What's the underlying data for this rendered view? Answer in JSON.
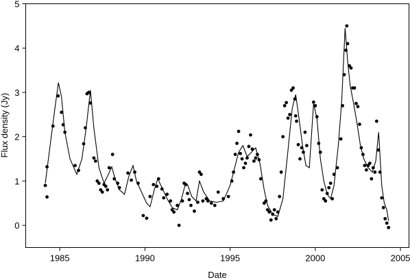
{
  "chart_data": {
    "type": "scatter",
    "xlabel": "Date",
    "ylabel": "Flux density (Jy)",
    "xlim": [
      1983,
      2005.5
    ],
    "ylim": [
      -0.5,
      5
    ],
    "x_ticks": [
      1985,
      1990,
      1995,
      2000,
      2005
    ],
    "y_ticks": [
      0,
      1,
      2,
      3,
      4,
      5
    ],
    "grid": false,
    "legend": "none",
    "colors": {
      "points": "#000000",
      "line": "#000000"
    },
    "series": [
      {
        "kind": "points",
        "x": [
          1984.15,
          1984.25,
          1984.25,
          1984.6,
          1984.9,
          1985.1,
          1985.2,
          1985.3,
          1985.9,
          1986.1,
          1986.4,
          1986.5,
          1986.6,
          1986.7,
          1986.8,
          1987.0,
          1987.1,
          1987.2,
          1987.3,
          1987.4,
          1987.5,
          1987.6,
          1987.7,
          1987.8,
          1987.9,
          1988.1,
          1988.2,
          1988.4,
          1988.5,
          1989.0,
          1989.2,
          1989.4,
          1989.6,
          1989.9,
          1990.1,
          1990.3,
          1990.5,
          1990.7,
          1990.8,
          1991.0,
          1991.1,
          1991.3,
          1991.5,
          1991.6,
          1991.7,
          1991.9,
          1992.0,
          1992.2,
          1992.3,
          1992.4,
          1992.5,
          1992.6,
          1992.7,
          1992.9,
          1993.1,
          1993.2,
          1993.3,
          1993.4,
          1993.6,
          1993.7,
          1993.9,
          1994.1,
          1994.3,
          1994.6,
          1994.9,
          1995.1,
          1995.2,
          1995.3,
          1995.4,
          1995.5,
          1995.6,
          1995.7,
          1995.8,
          1995.9,
          1996.0,
          1996.1,
          1996.2,
          1996.3,
          1996.4,
          1996.5,
          1996.6,
          1996.7,
          1996.8,
          1997.0,
          1997.1,
          1997.2,
          1997.3,
          1997.4,
          1997.5,
          1997.6,
          1997.7,
          1997.8,
          1997.9,
          1998.0,
          1998.1,
          1998.2,
          1998.3,
          1998.4,
          1998.5,
          1998.6,
          1998.7,
          1998.8,
          1998.85,
          1998.9,
          1999.0,
          1999.1,
          1999.2,
          1999.3,
          1999.4,
          1999.5,
          1999.9,
          2000.0,
          2000.1,
          2000.2,
          2000.3,
          2000.4,
          2000.5,
          2000.6,
          2000.7,
          2000.8,
          2000.9,
          2001.0,
          2001.1,
          2001.3,
          2001.5,
          2001.6,
          2001.7,
          2001.8,
          2001.85,
          2001.9,
          2002.0,
          2002.1,
          2002.2,
          2002.3,
          2002.4,
          2002.5,
          2002.6,
          2002.7,
          2002.8,
          2002.9,
          2003.0,
          2003.1,
          2003.2,
          2003.3,
          2003.4,
          2003.5,
          2003.6,
          2003.7,
          2003.8,
          2003.9,
          2004.0,
          2004.1,
          2004.2,
          2004.3
        ],
        "y": [
          0.9,
          1.32,
          0.64,
          2.24,
          2.92,
          2.55,
          2.27,
          2.1,
          1.35,
          1.24,
          1.84,
          2.2,
          2.97,
          3.0,
          2.76,
          1.52,
          1.45,
          1.0,
          0.95,
          0.8,
          0.75,
          0.92,
          0.88,
          0.8,
          1.3,
          1.6,
          1.05,
          0.95,
          0.85,
          1.18,
          1.02,
          1.2,
          0.95,
          0.22,
          0.16,
          0.65,
          0.92,
          0.88,
          1.05,
          0.82,
          0.62,
          0.7,
          0.55,
          0.35,
          0.3,
          0.45,
          0.0,
          0.55,
          0.95,
          0.92,
          0.72,
          0.58,
          0.45,
          0.32,
          0.52,
          1.2,
          1.15,
          0.55,
          0.6,
          0.55,
          0.5,
          0.45,
          0.75,
          0.6,
          0.65,
          1.0,
          1.2,
          1.6,
          1.85,
          2.12,
          1.62,
          1.5,
          1.3,
          1.4,
          1.52,
          1.78,
          2.04,
          1.72,
          1.45,
          1.52,
          1.6,
          1.48,
          1.05,
          0.5,
          0.55,
          0.35,
          0.3,
          0.12,
          0.25,
          0.35,
          0.15,
          0.3,
          0.65,
          1.2,
          2.0,
          2.7,
          2.77,
          2.42,
          2.5,
          3.05,
          3.1,
          2.85,
          2.47,
          2.35,
          1.82,
          1.5,
          1.75,
          1.65,
          2.1,
          1.8,
          2.78,
          2.7,
          2.45,
          1.85,
          1.65,
          0.8,
          0.6,
          0.55,
          0.72,
          0.85,
          0.95,
          0.6,
          1.15,
          1.3,
          1.95,
          2.7,
          3.4,
          3.95,
          4.5,
          4.1,
          3.6,
          3.55,
          3.1,
          3.1,
          2.75,
          2.68,
          2.28,
          1.75,
          1.6,
          1.35,
          1.25,
          1.35,
          1.4,
          1.05,
          1.3,
          1.2,
          2.35,
          1.7,
          1.2,
          0.62,
          0.4,
          0.15,
          0.05,
          -0.05
        ]
      },
      {
        "kind": "line",
        "x": [
          1984.15,
          1984.4,
          1984.7,
          1984.92,
          1985.1,
          1985.3,
          1985.6,
          1986.0,
          1986.3,
          1986.55,
          1986.8,
          1987.0,
          1987.3,
          1987.6,
          1987.85,
          1988.05,
          1988.25,
          1988.5,
          1988.8,
          1989.05,
          1989.3,
          1989.5,
          1989.8,
          1990.1,
          1990.3,
          1990.55,
          1990.75,
          1991.0,
          1991.3,
          1991.6,
          1991.9,
          1992.15,
          1992.35,
          1992.5,
          1992.75,
          1993.0,
          1993.2,
          1993.45,
          1993.8,
          1994.2,
          1994.6,
          1995.0,
          1995.3,
          1995.5,
          1995.75,
          1996.0,
          1996.25,
          1996.5,
          1996.75,
          1997.0,
          1997.2,
          1997.5,
          1997.8,
          1998.1,
          1998.4,
          1998.65,
          1998.85,
          1999.05,
          1999.25,
          1999.45,
          1999.65,
          1999.9,
          2000.1,
          2000.3,
          2000.5,
          2000.7,
          2000.9,
          2001.1,
          2001.35,
          2001.55,
          2001.75,
          2001.9,
          2002.05,
          2002.25,
          2002.45,
          2002.65,
          2002.85,
          2003.1,
          2003.35,
          2003.55,
          2003.72,
          2003.9,
          2004.05,
          2004.2,
          2004.3
        ],
        "y": [
          0.95,
          1.7,
          2.6,
          3.22,
          2.9,
          2.1,
          1.5,
          1.15,
          1.5,
          2.2,
          3.05,
          2.2,
          1.3,
          0.95,
          1.15,
          1.32,
          1.05,
          0.8,
          0.7,
          1.1,
          1.35,
          1.0,
          0.75,
          0.5,
          0.42,
          0.8,
          1.05,
          0.85,
          0.6,
          0.4,
          0.35,
          0.6,
          0.9,
          0.92,
          0.65,
          0.55,
          1.0,
          0.75,
          0.55,
          0.52,
          0.55,
          0.9,
          1.35,
          1.65,
          1.8,
          1.55,
          1.65,
          1.75,
          1.4,
          0.8,
          0.45,
          0.25,
          0.2,
          0.6,
          1.7,
          2.65,
          2.95,
          2.4,
          1.8,
          1.35,
          1.3,
          2.75,
          2.4,
          1.5,
          1.0,
          0.7,
          0.6,
          0.9,
          1.8,
          2.8,
          4.45,
          3.7,
          3.15,
          2.75,
          2.3,
          1.8,
          1.5,
          1.3,
          1.2,
          1.45,
          2.1,
          0.9,
          0.5,
          0.35,
          0.1
        ]
      }
    ]
  }
}
